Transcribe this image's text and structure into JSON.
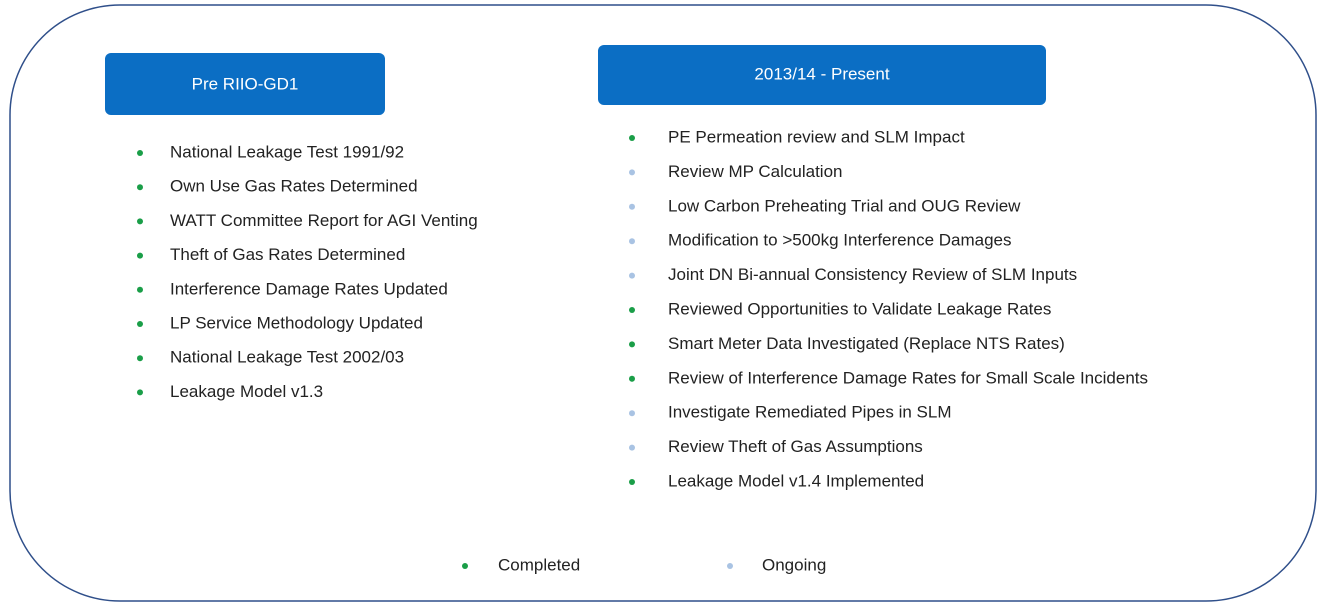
{
  "columns": [
    {
      "title": "Pre RIIO-GD1",
      "items": [
        {
          "text": "National Leakage Test 1991/92",
          "color": "#1a9e48"
        },
        {
          "text": "Own Use Gas Rates Determined",
          "color": "#1a9e48"
        },
        {
          "text": "WATT Committee Report for AGI Venting",
          "color": "#1a9e48"
        },
        {
          "text": "Theft of Gas Rates Determined",
          "color": "#1a9e48"
        },
        {
          "text": "Interference Damage Rates Updated",
          "color": "#1a9e48"
        },
        {
          "text": "LP Service Methodology Updated",
          "color": "#1a9e48"
        },
        {
          "text": "National Leakage Test 2002/03",
          "color": "#1a9e48"
        },
        {
          "text": "Leakage Model v1.3",
          "color": "#1a9e48"
        }
      ]
    },
    {
      "title": "2013/14 - Present",
      "items": [
        {
          "text": "PE Permeation review and SLM Impact",
          "color": "#1a9e48"
        },
        {
          "text": "Review MP Calculation",
          "color": "#a9c3e3"
        },
        {
          "text": "Low Carbon Preheating Trial and OUG Review",
          "color": "#a9c3e3"
        },
        {
          "text": "Modification to >500kg Interference Damages",
          "color": "#a9c3e3"
        },
        {
          "text": "Joint DN Bi-annual Consistency Review of SLM Inputs",
          "color": "#a9c3e3"
        },
        {
          "text": "Reviewed Opportunities to Validate Leakage Rates",
          "color": "#1a9e48"
        },
        {
          "text": "Smart Meter Data Investigated (Replace NTS Rates)",
          "color": "#1a9e48"
        },
        {
          "text": "Review of Interference Damage Rates for Small Scale Incidents",
          "color": "#1a9e48"
        },
        {
          "text": "Investigate Remediated Pipes in SLM",
          "color": "#a9c3e3"
        },
        {
          "text": "Review Theft of Gas Assumptions",
          "color": "#a9c3e3"
        },
        {
          "text": "Leakage Model v1.4 Implemented",
          "color": "#1a9e48"
        }
      ]
    }
  ],
  "legend": [
    {
      "name": "Completed",
      "color": "#1a9e48"
    },
    {
      "name": "Ongoing",
      "color": "#a9c3e3"
    }
  ]
}
